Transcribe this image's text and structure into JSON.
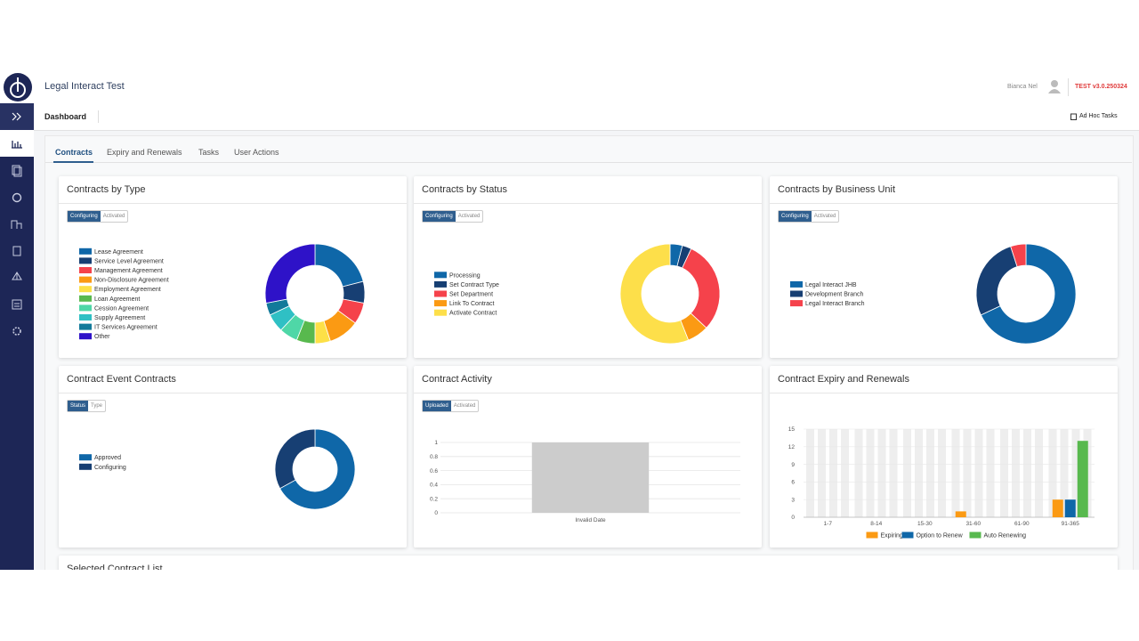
{
  "header": {
    "app_title": "Legal Interact Test",
    "user": "Bianca Nel",
    "version": "TEST v3.0.250324"
  },
  "toolbar": {
    "title": "Dashboard",
    "action": "Ad Hoc Tasks"
  },
  "tabs": [
    "Contracts",
    "Expiry and Renewals",
    "Tasks",
    "User Actions"
  ],
  "cards": [
    {
      "title": "Contracts by Type",
      "toggle": [
        "Configuring",
        "Activated"
      ],
      "chart": {
        "type": "doughnut",
        "categories": [
          "Lease Agreement",
          "Service Level Agreement",
          "Management Agreement",
          "Non-Disclosure Agreement",
          "Employment Agreement",
          "Loan Agreement",
          "Cession Agreement",
          "Supply Agreement",
          "IT Services Agreement",
          "Other"
        ],
        "values": [
          21,
          7,
          7,
          10,
          5,
          6,
          6,
          6,
          4,
          28
        ],
        "colors": [
          "#0f67a8",
          "#173f73",
          "#f5424b",
          "#fb9a13",
          "#fde047",
          "#58b94e",
          "#4fd7a7",
          "#2fc0c4",
          "#127a9a",
          "#2e12c8"
        ]
      }
    },
    {
      "title": "Contracts by Status",
      "toggle": [
        "Configuring",
        "Activated"
      ],
      "chart": {
        "type": "doughnut",
        "categories": [
          "Processing",
          "Set Contract Type",
          "Set Department",
          "Link To Contract",
          "Activate Contract"
        ],
        "values": [
          4,
          3,
          30,
          7,
          56
        ],
        "colors": [
          "#0f67a8",
          "#173f73",
          "#f5424b",
          "#fb9a13",
          "#fddf4a"
        ]
      }
    },
    {
      "title": "Contracts by Business Unit",
      "toggle": [
        "Configuring",
        "Activated"
      ],
      "chart": {
        "type": "doughnut",
        "categories": [
          "Legal Interact JHB",
          "Development Branch",
          "Legal Interact Branch"
        ],
        "values": [
          68,
          27,
          5
        ],
        "colors": [
          "#0f67a8",
          "#173f73",
          "#f5424b"
        ]
      }
    },
    {
      "title": "Contract Event Contracts",
      "toggle": [
        "Status",
        "Type"
      ],
      "chart": {
        "type": "doughnut",
        "categories": [
          "Approved",
          "Configuring"
        ],
        "values": [
          67,
          33
        ],
        "colors": [
          "#0f67a8",
          "#173f73"
        ]
      }
    },
    {
      "title": "Contract Activity",
      "toggle": [
        "Uploaded",
        "Activated"
      ],
      "chart": {
        "type": "bar",
        "categories": [
          "Invalid Date"
        ],
        "values": [
          1
        ],
        "color": "#cccccc",
        "ylim": [
          0,
          1
        ],
        "yticks": [
          0,
          0.2,
          0.4,
          0.6,
          0.8,
          1
        ],
        "grid": true
      }
    },
    {
      "title": "Contract Expiry and Renewals",
      "chart": {
        "type": "grouped_bar",
        "categories": [
          "1-7",
          "8-14",
          "15-30",
          "31-60",
          "61-90",
          "91-365"
        ],
        "series": [
          {
            "name": "Expiring",
            "color": "#fb9a13",
            "values": [
              0,
              0,
              0,
              1,
              0,
              3
            ]
          },
          {
            "name": "Option to Renew",
            "color": "#0f67a8",
            "values": [
              0,
              0,
              0,
              0,
              0,
              3
            ]
          },
          {
            "name": "Auto Renewing",
            "color": "#58b94e",
            "values": [
              0,
              0,
              0,
              0,
              0,
              13
            ]
          }
        ],
        "ylim": [
          0,
          15
        ],
        "yticks": [
          0,
          3,
          6,
          9,
          12,
          15
        ],
        "grid": true,
        "legend": "bottom"
      }
    }
  ],
  "next_card_title": "Selected Contract List"
}
